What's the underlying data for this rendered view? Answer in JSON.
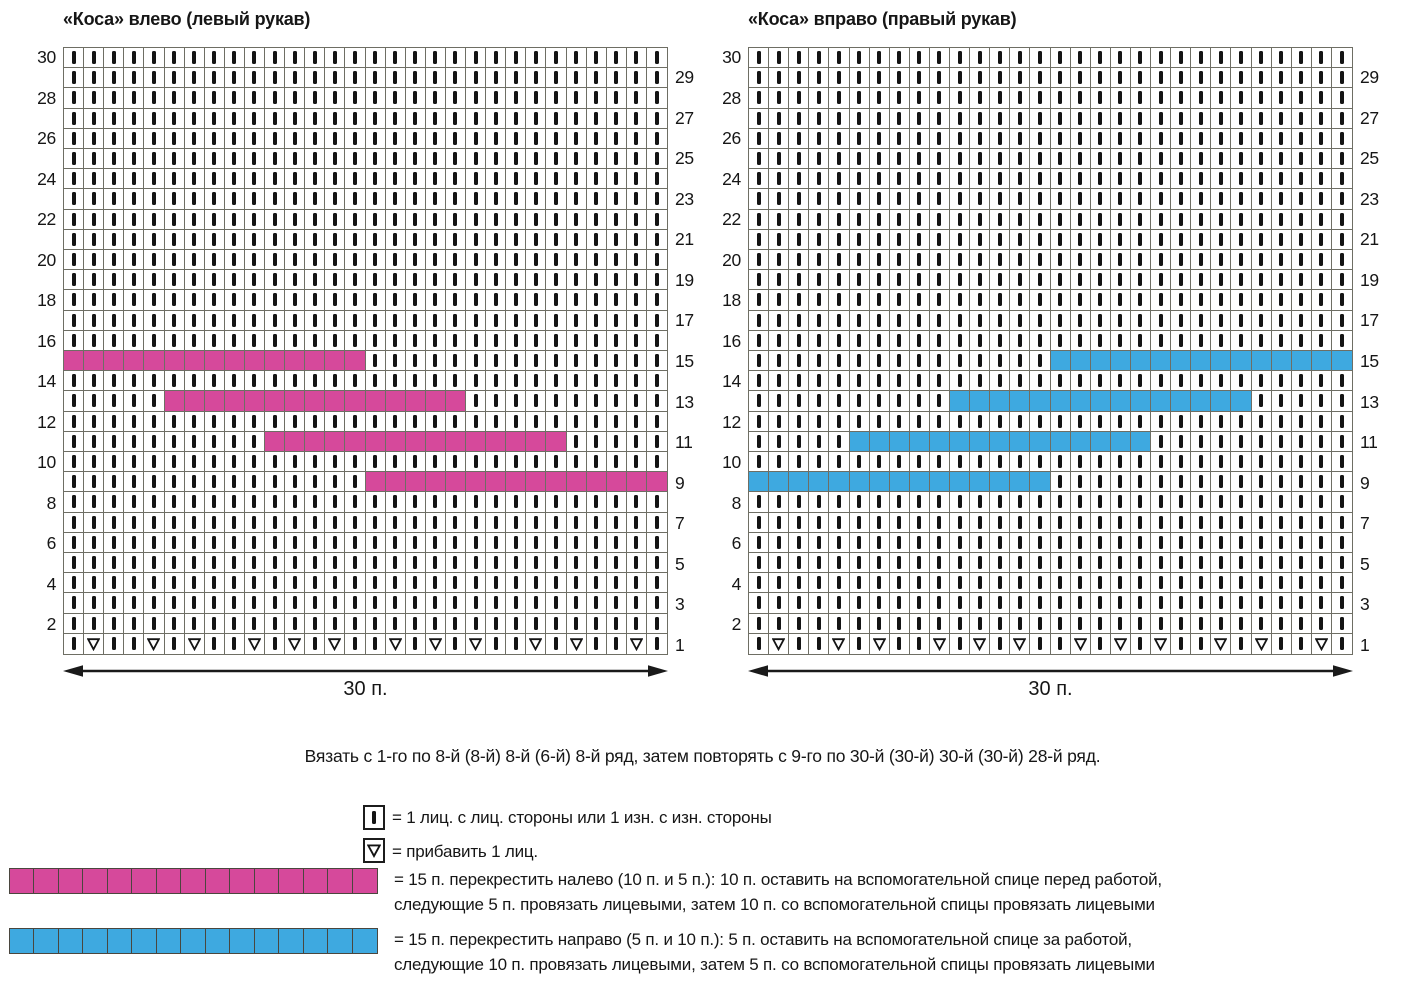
{
  "charts": [
    {
      "title": "«Коса» влево (левый рукав)",
      "arrow_label": "30 п.",
      "cols": 30,
      "rows": 30,
      "cable_color": "#d6499b",
      "cable_direction": "cross-left",
      "cable_bars": [
        {
          "row": 15,
          "from": 1,
          "to": 15
        },
        {
          "row": 13,
          "from": 6,
          "to": 20
        },
        {
          "row": 11,
          "from": 11,
          "to": 25
        },
        {
          "row": 9,
          "from": 16,
          "to": 30
        }
      ],
      "increase_row": 1,
      "increase_cols": [
        2,
        5,
        7,
        10,
        12,
        14,
        17,
        19,
        21,
        24,
        26,
        29
      ],
      "left_numbers": [
        30,
        28,
        26,
        24,
        22,
        20,
        18,
        16,
        14,
        12,
        10,
        8,
        6,
        4,
        2
      ],
      "right_numbers": [
        29,
        27,
        25,
        23,
        21,
        19,
        17,
        15,
        13,
        11,
        9,
        7,
        5,
        3,
        1
      ]
    },
    {
      "title": "«Коса» вправо (правый рукав)",
      "arrow_label": "30 п.",
      "cols": 30,
      "rows": 30,
      "cable_color": "#3ea9e0",
      "cable_direction": "cross-right",
      "cable_bars": [
        {
          "row": 15,
          "from": 16,
          "to": 30
        },
        {
          "row": 13,
          "from": 11,
          "to": 25
        },
        {
          "row": 11,
          "from": 6,
          "to": 20
        },
        {
          "row": 9,
          "from": 1,
          "to": 15
        }
      ],
      "increase_row": 1,
      "increase_cols": [
        2,
        5,
        7,
        10,
        12,
        14,
        17,
        19,
        21,
        24,
        26,
        29
      ],
      "left_numbers": [
        30,
        28,
        26,
        24,
        22,
        20,
        18,
        16,
        14,
        12,
        10,
        8,
        6,
        4,
        2
      ],
      "right_numbers": [
        29,
        27,
        25,
        23,
        21,
        19,
        17,
        15,
        13,
        11,
        9,
        7,
        5,
        3,
        1
      ]
    }
  ],
  "instruction": "Вязать с 1-го по 8-й (8-й) 8-й (6-й) 8-й ряд, затем повторять с 9-го по 30-й (30-й) 30-й (30-й) 28-й ряд.",
  "legend": {
    "knit": {
      "symbol": "knit-stitch",
      "text": "= 1 лиц. с лиц. стороны или 1 изн. с изн. стороны"
    },
    "increase": {
      "symbol": "increase",
      "text": "= прибавить 1 лиц."
    },
    "cable_left": {
      "color": "#d6499b",
      "cells": 15,
      "line1": "=  15 п. перекрестить налево (10 п. и 5 п.): 10 п. оставить на вспомогательной спице перед работой,",
      "line2": "следующие 5 п. провязать лицевыми, затем 10 п. со вспомогательной спицы провязать лицевыми"
    },
    "cable_right": {
      "color": "#3ea9e0",
      "cells": 15,
      "line1": "= 15 п. перекрестить направо (5 п. и 10 п.): 5 п. оставить на вспомогательной спице за работой,",
      "line2": "следующие 10 п. провязать лицевыми, затем 5 п. со вспомогательной спицы провязать лицевыми"
    }
  },
  "colors": {
    "grid_border": "#6e6e64",
    "symbol": "#141414",
    "pink": "#d6499b",
    "blue": "#3ea9e0"
  }
}
